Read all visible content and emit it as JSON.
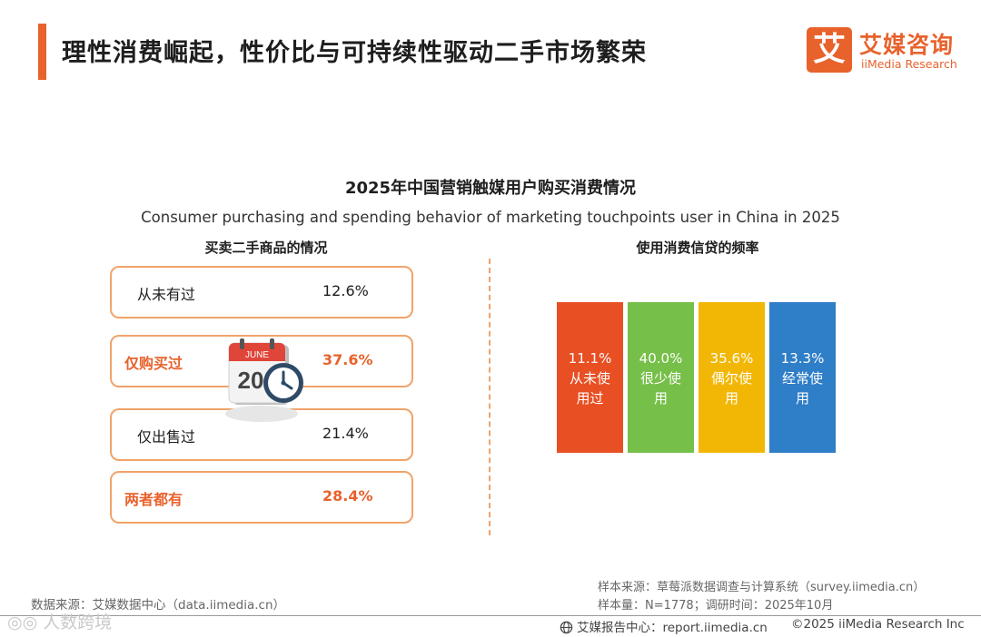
{
  "header": {
    "title": "理性消费崛起，性价比与可持续性驱动二手市场繁荣",
    "accent_color": "#e8622c"
  },
  "logo": {
    "glyph": "艾",
    "name_cn": "艾媒咨询",
    "name_en": "iiMedia Research"
  },
  "chart": {
    "title": "2025年中国营销触媒用户购买消费情况",
    "subtitle": "Consumer purchasing and spending behavior of marketing touchpoints user in China in 2025"
  },
  "left_panel": {
    "title": "买卖二手商品的情况",
    "icon": "calendar-clock-icon",
    "calendar_month": "JUNE",
    "calendar_day": "20",
    "rows": [
      {
        "label": "从未有过",
        "value": "12.6%",
        "highlight": false
      },
      {
        "label": "仅购买过",
        "value": "37.6%",
        "highlight": true
      },
      {
        "label": "仅出售过",
        "value": "21.4%",
        "highlight": false
      },
      {
        "label": "两者都有",
        "value": "28.4%",
        "highlight": true
      }
    ]
  },
  "right_panel": {
    "title": "使用消费信贷的频率"
  },
  "chart_data": [
    {
      "type": "table",
      "title": "买卖二手商品的情况",
      "categories": [
        "从未有过",
        "仅购买过",
        "仅出售过",
        "两者都有"
      ],
      "values": [
        12.6,
        37.6,
        21.4,
        28.4
      ],
      "unit": "%"
    },
    {
      "type": "bar",
      "title": "使用消费信贷的频率",
      "categories": [
        "从未使用过",
        "很少使用",
        "偶尔使用",
        "经常使用"
      ],
      "values": [
        11.1,
        40.0,
        35.6,
        13.3
      ],
      "value_labels": [
        "11.1%",
        "40.0%",
        "35.6%",
        "13.3%"
      ],
      "category_lines": [
        [
          "从未使",
          "用过"
        ],
        [
          "很少使",
          "用"
        ],
        [
          "偶尔使",
          "用"
        ],
        [
          "经常使",
          "用"
        ]
      ],
      "colors": [
        "#e84f23",
        "#76bf48",
        "#f2b705",
        "#2f7ec8"
      ]
    }
  ],
  "footer": {
    "source_left": "数据来源：艾媒数据中心（data.iimedia.cn）",
    "sample_source": "样本来源：草莓派数据调查与计算系统（survey.iimedia.cn）",
    "sample_size": "样本量：N=1778；调研时间：2025年10月",
    "report_center": "艾媒报告中心：report.iimedia.cn",
    "copyright": "©2025  iiMedia Research  Inc",
    "watermark": "◎◎ 人数跨境"
  }
}
